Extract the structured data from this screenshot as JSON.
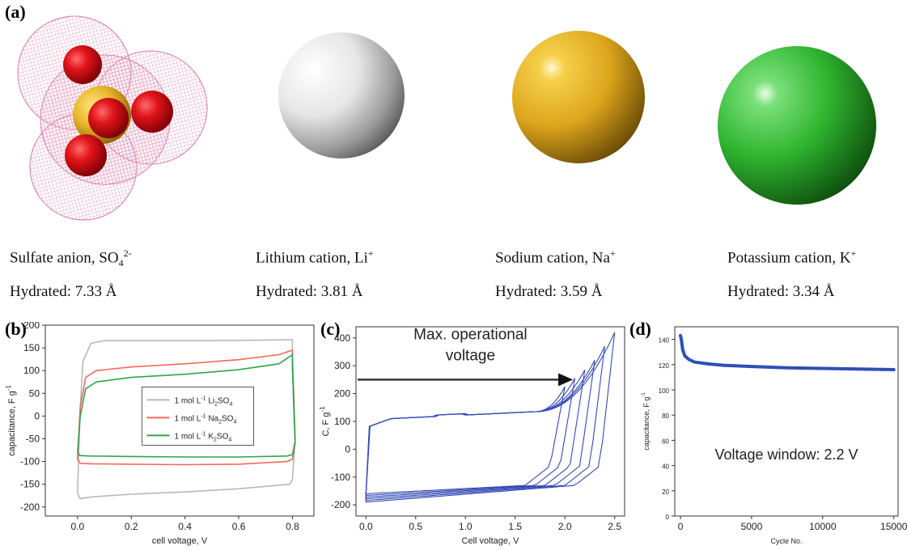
{
  "panels": {
    "a": "(a)",
    "b": "(b)",
    "c": "(c)",
    "d": "(d)"
  },
  "ions": [
    {
      "name": "Sulfate anion, SO",
      "sub": "4",
      "sup": "2-",
      "hydrated": "Hydrated: 7.33 Å",
      "color": "#e8141a"
    },
    {
      "name": "Lithium cation, Li",
      "sub": "",
      "sup": "+",
      "hydrated": "Hydrated: 3.81 Å",
      "color": "#dcdcdc"
    },
    {
      "name": "Sodium cation, Na",
      "sub": "",
      "sup": "+",
      "hydrated": "Hydrated: 3.59 Å",
      "color": "#e2a91c"
    },
    {
      "name": "Potassium cation, K",
      "sub": "",
      "sup": "+",
      "hydrated": "Hydrated: 3.34 Å",
      "color": "#2fb52f"
    }
  ],
  "chart_data": [
    {
      "type": "line",
      "xlabel": "cell voltage, V",
      "ylabel": "capacitance, F g",
      "ylabel_sup": "-1",
      "xlim": [
        -0.12,
        0.88
      ],
      "ylim": [
        -220,
        200
      ],
      "xticks": [
        0.0,
        0.2,
        0.4,
        0.6,
        0.8
      ],
      "yticks": [
        -200,
        -150,
        -100,
        -50,
        0,
        50,
        100,
        150,
        200
      ],
      "legend_position": "center-right",
      "series": [
        {
          "name": "1 mol L-1 Li2SO4",
          "label_parts": [
            "1 mol L",
            "-1",
            " Li",
            "2",
            "SO",
            "4"
          ],
          "color": "#b8b8b8",
          "points": [
            [
              0.0,
              -170
            ],
            [
              0.01,
              20
            ],
            [
              0.02,
              120
            ],
            [
              0.05,
              160
            ],
            [
              0.1,
              166
            ],
            [
              0.3,
              166
            ],
            [
              0.5,
              166
            ],
            [
              0.7,
              167
            ],
            [
              0.78,
              168
            ],
            [
              0.8,
              168
            ],
            [
              0.8,
              140
            ],
            [
              0.805,
              60
            ],
            [
              0.81,
              -50
            ],
            [
              0.8,
              -140
            ],
            [
              0.79,
              -150
            ],
            [
              0.6,
              -160
            ],
            [
              0.4,
              -167
            ],
            [
              0.2,
              -172
            ],
            [
              0.05,
              -178
            ],
            [
              0.01,
              -182
            ],
            [
              0.0,
              -170
            ]
          ]
        },
        {
          "name": "1 mol L-1 Na2SO4",
          "label_parts": [
            "1 mol L",
            "-1",
            " Na",
            "2",
            "SO",
            "4"
          ],
          "color": "#ef6a5a",
          "points": [
            [
              0.0,
              -95
            ],
            [
              0.01,
              20
            ],
            [
              0.03,
              85
            ],
            [
              0.07,
              100
            ],
            [
              0.2,
              108
            ],
            [
              0.4,
              115
            ],
            [
              0.6,
              124
            ],
            [
              0.75,
              135
            ],
            [
              0.8,
              145
            ],
            [
              0.8,
              120
            ],
            [
              0.805,
              20
            ],
            [
              0.81,
              -60
            ],
            [
              0.8,
              -95
            ],
            [
              0.78,
              -100
            ],
            [
              0.6,
              -106
            ],
            [
              0.4,
              -107
            ],
            [
              0.2,
              -106
            ],
            [
              0.05,
              -105
            ],
            [
              0.01,
              -104
            ],
            [
              0.0,
              -95
            ]
          ]
        },
        {
          "name": "1 mol L-1 K2SO4",
          "label_parts": [
            "1 mol L",
            "-1",
            " K",
            "2",
            "SO",
            "4"
          ],
          "color": "#2ea64a",
          "points": [
            [
              0.0,
              -80
            ],
            [
              0.01,
              0
            ],
            [
              0.03,
              60
            ],
            [
              0.07,
              75
            ],
            [
              0.2,
              85
            ],
            [
              0.4,
              92
            ],
            [
              0.6,
              102
            ],
            [
              0.75,
              115
            ],
            [
              0.8,
              135
            ],
            [
              0.8,
              110
            ],
            [
              0.805,
              20
            ],
            [
              0.81,
              -55
            ],
            [
              0.8,
              -85
            ],
            [
              0.78,
              -88
            ],
            [
              0.6,
              -90
            ],
            [
              0.4,
              -90
            ],
            [
              0.2,
              -89
            ],
            [
              0.05,
              -88
            ],
            [
              0.01,
              -87
            ],
            [
              0.0,
              -80
            ]
          ]
        }
      ]
    },
    {
      "type": "line",
      "xlabel": "Cell voltage, V",
      "ylabel": "C, F g",
      "ylabel_sup": "-1",
      "xlim": [
        -0.1,
        2.6
      ],
      "ylim": [
        -240,
        440
      ],
      "xticks": [
        0.0,
        0.5,
        1.0,
        1.5,
        2.0,
        2.5
      ],
      "yticks": [
        -200,
        -100,
        0,
        100,
        200,
        300,
        400
      ],
      "annotation": {
        "line1": "Max. operational",
        "line2": "voltage",
        "arrow_y": 250,
        "arrow_x": [
          -0.1,
          2.08
        ]
      },
      "series_color": "#3549b5",
      "series": [
        {
          "vmax": 2.0,
          "ymax": 225
        },
        {
          "vmax": 2.1,
          "ymax": 255
        },
        {
          "vmax": 2.2,
          "ymax": 285
        },
        {
          "vmax": 2.3,
          "ymax": 320
        },
        {
          "vmax": 2.4,
          "ymax": 370
        },
        {
          "vmax": 2.5,
          "ymax": 420
        }
      ]
    },
    {
      "type": "line",
      "xlabel": "Cycle No.",
      "ylabel": "capacitance, F g",
      "ylabel_sup": "-1",
      "xlim": [
        -400,
        15300
      ],
      "ylim": [
        0,
        150
      ],
      "xticks": [
        0,
        5000,
        10000,
        15000
      ],
      "yticks": [
        0,
        20,
        40,
        60,
        80,
        100,
        120,
        140
      ],
      "annotation": "Voltage window: 2.2 V",
      "color": "#2f4fb5",
      "points": [
        [
          0,
          143
        ],
        [
          60,
          140
        ],
        [
          150,
          132
        ],
        [
          300,
          127
        ],
        [
          600,
          124
        ],
        [
          1000,
          122
        ],
        [
          2000,
          120.5
        ],
        [
          3000,
          119.5
        ],
        [
          5000,
          118.5
        ],
        [
          7500,
          117.5
        ],
        [
          10000,
          117
        ],
        [
          12500,
          116.5
        ],
        [
          15000,
          116
        ]
      ]
    }
  ]
}
